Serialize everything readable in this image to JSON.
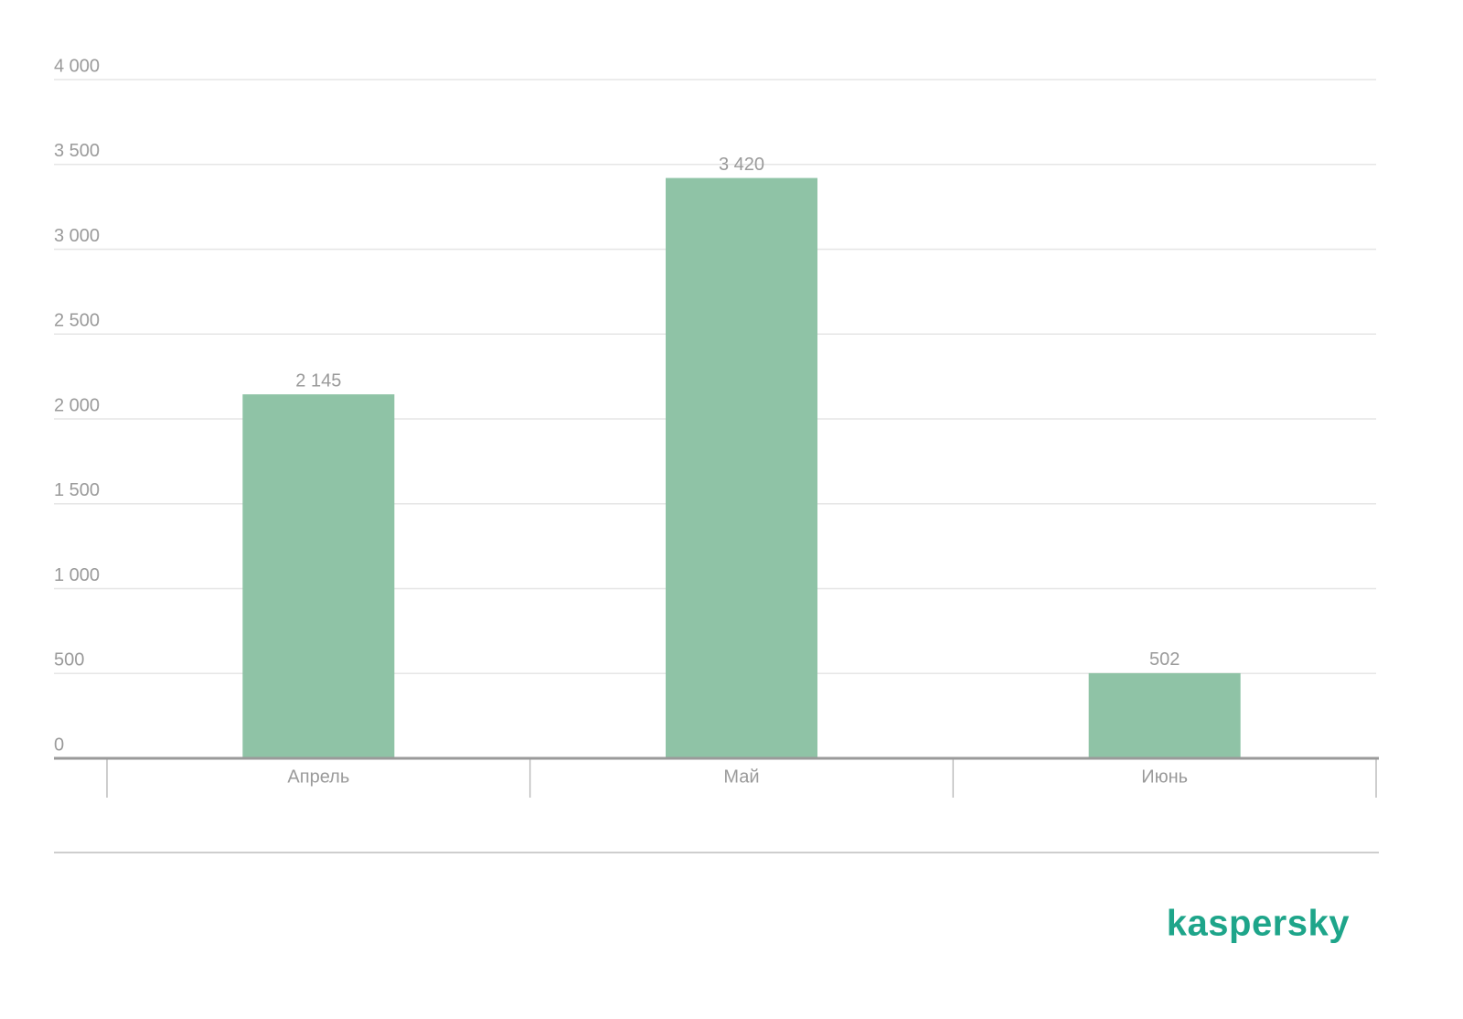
{
  "chart_data": {
    "type": "bar",
    "categories": [
      "Апрель",
      "Май",
      "Июнь"
    ],
    "values": [
      2145,
      3420,
      502
    ],
    "value_labels": [
      "2 145",
      "3 420",
      "502"
    ],
    "color": "#8fc3a6",
    "ylim": [
      0,
      4000
    ],
    "yticks": [
      0,
      500,
      {
        "value": 1000,
        "label": "1 000"
      },
      {
        "value": 1500,
        "label": "1 500"
      },
      {
        "value": 2000,
        "label": "2 000"
      },
      {
        "value": 2500,
        "label": "2 500"
      },
      {
        "value": 3000,
        "label": "3 000"
      },
      {
        "value": 3500,
        "label": "3 500"
      },
      {
        "value": 4000,
        "label": "4 000"
      }
    ],
    "grid": true,
    "logo": "kaspersky"
  }
}
